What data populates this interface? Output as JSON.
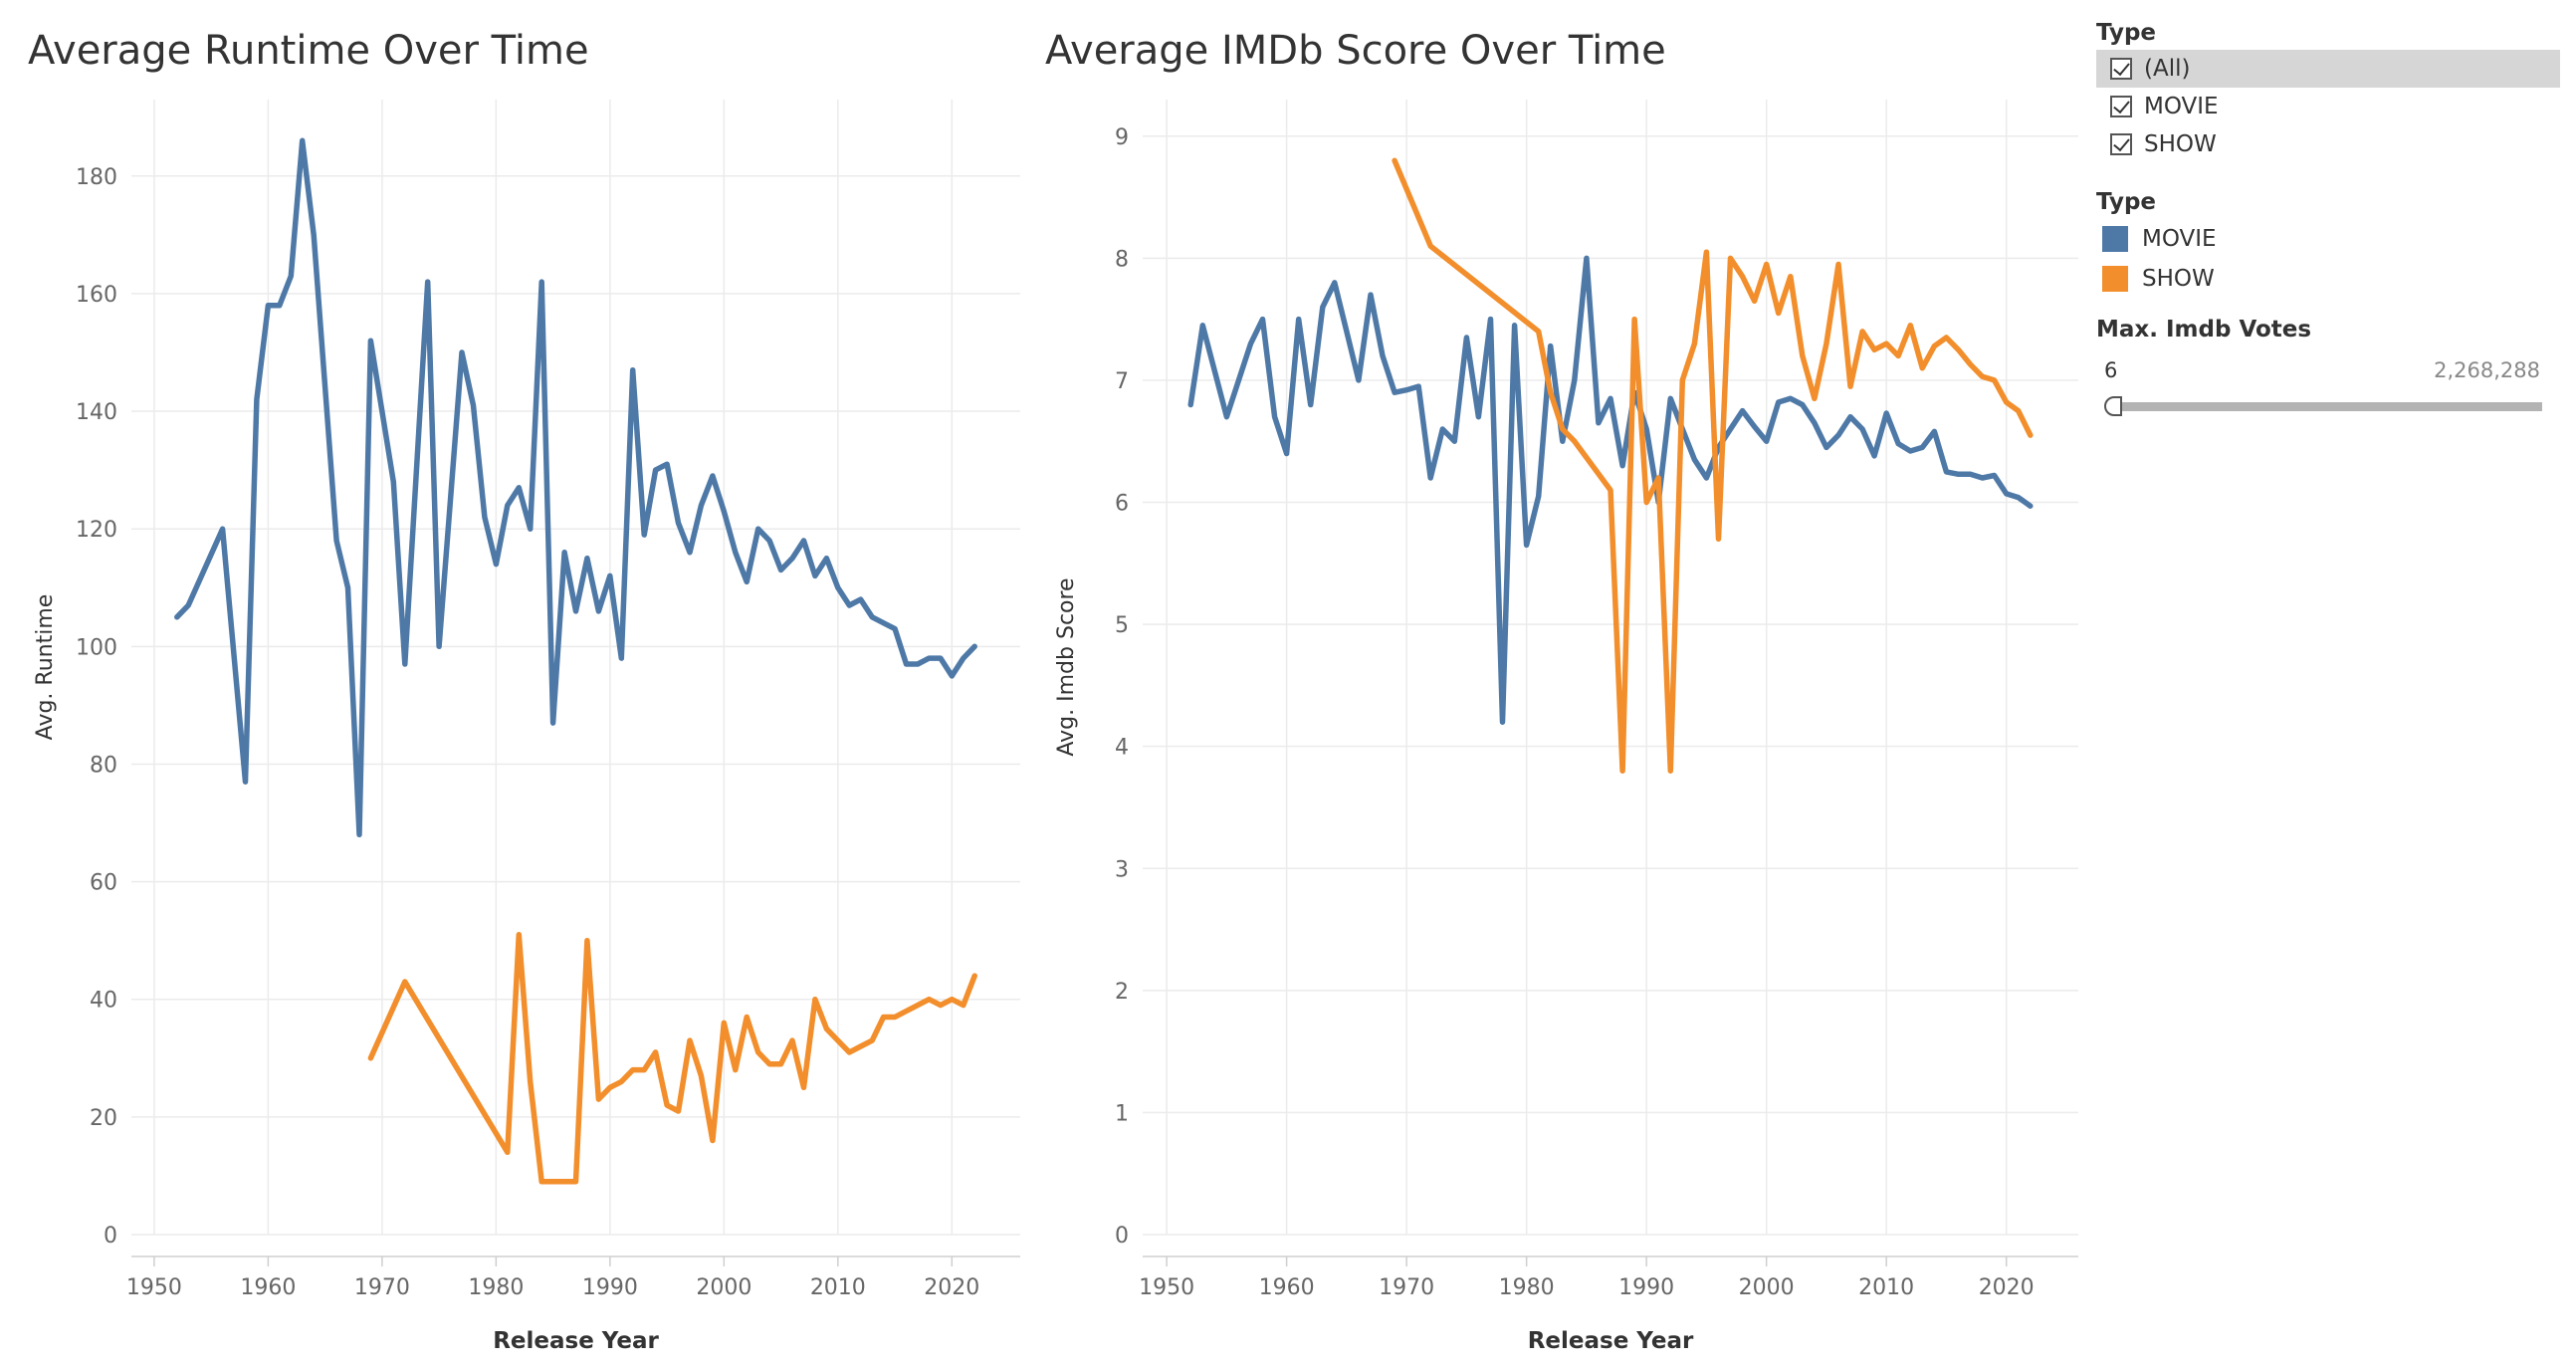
{
  "colors": {
    "movie": "#4e79a7",
    "show": "#f28e2b",
    "grid": "#ebebeb",
    "axis": "#cfcfcf"
  },
  "filter": {
    "title": "Type",
    "items": [
      {
        "label": "(All)",
        "checked": true,
        "selected": true
      },
      {
        "label": "MOVIE",
        "checked": true,
        "selected": false
      },
      {
        "label": "SHOW",
        "checked": true,
        "selected": false
      }
    ]
  },
  "legend": {
    "title": "Type",
    "items": [
      {
        "label": "MOVIE",
        "color": "#4e79a7"
      },
      {
        "label": "SHOW",
        "color": "#f28e2b"
      }
    ]
  },
  "slider": {
    "title": "Max. Imdb Votes",
    "min_label": "6",
    "max_label": "2,268,288",
    "value_fraction": 0.0
  },
  "chart_data": [
    {
      "type": "line",
      "title": "Average Runtime Over Time",
      "xlabel": "Release Year",
      "ylabel": "Avg. Runtime",
      "xlim": [
        1948,
        2026
      ],
      "ylim": [
        0,
        193
      ],
      "xticks": [
        1950,
        1960,
        1970,
        1980,
        1990,
        2000,
        2010,
        2020
      ],
      "yticks": [
        0,
        20,
        40,
        60,
        80,
        100,
        120,
        140,
        160,
        180
      ],
      "grid": true,
      "series": [
        {
          "name": "MOVIE",
          "color": "#4e79a7",
          "points": [
            [
              1952,
              105
            ],
            [
              1953,
              107
            ],
            [
              1956,
              120
            ],
            [
              1958,
              77
            ],
            [
              1959,
              142
            ],
            [
              1960,
              158
            ],
            [
              1961,
              158
            ],
            [
              1962,
              163
            ],
            [
              1963,
              186
            ],
            [
              1964,
              170
            ],
            [
              1966,
              118
            ],
            [
              1967,
              110
            ],
            [
              1968,
              68
            ],
            [
              1969,
              152
            ],
            [
              1971,
              128
            ],
            [
              1972,
              97
            ],
            [
              1974,
              162
            ],
            [
              1975,
              100
            ],
            [
              1977,
              150
            ],
            [
              1978,
              141
            ],
            [
              1979,
              122
            ],
            [
              1980,
              114
            ],
            [
              1981,
              124
            ],
            [
              1982,
              127
            ],
            [
              1983,
              120
            ],
            [
              1984,
              162
            ],
            [
              1985,
              87
            ],
            [
              1986,
              116
            ],
            [
              1987,
              106
            ],
            [
              1988,
              115
            ],
            [
              1989,
              106
            ],
            [
              1990,
              112
            ],
            [
              1991,
              98
            ],
            [
              1992,
              147
            ],
            [
              1993,
              119
            ],
            [
              1994,
              130
            ],
            [
              1995,
              131
            ],
            [
              1996,
              121
            ],
            [
              1997,
              116
            ],
            [
              1998,
              124
            ],
            [
              1999,
              129
            ],
            [
              2000,
              123
            ],
            [
              2001,
              116
            ],
            [
              2002,
              111
            ],
            [
              2003,
              120
            ],
            [
              2004,
              118
            ],
            [
              2005,
              113
            ],
            [
              2006,
              115
            ],
            [
              2007,
              118
            ],
            [
              2008,
              112
            ],
            [
              2009,
              115
            ],
            [
              2010,
              110
            ],
            [
              2011,
              107
            ],
            [
              2012,
              108
            ],
            [
              2013,
              105
            ],
            [
              2014,
              104
            ],
            [
              2015,
              103
            ],
            [
              2016,
              97
            ],
            [
              2017,
              97
            ],
            [
              2018,
              98
            ],
            [
              2019,
              98
            ],
            [
              2020,
              95
            ],
            [
              2021,
              98
            ],
            [
              2022,
              100
            ]
          ]
        },
        {
          "name": "SHOW",
          "color": "#f28e2b",
          "points": [
            [
              1969,
              30
            ],
            [
              1972,
              43
            ],
            [
              1981,
              14
            ],
            [
              1982,
              51
            ],
            [
              1983,
              26
            ],
            [
              1984,
              9
            ],
            [
              1987,
              9
            ],
            [
              1988,
              50
            ],
            [
              1989,
              23
            ],
            [
              1990,
              25
            ],
            [
              1991,
              26
            ],
            [
              1992,
              28
            ],
            [
              1993,
              28
            ],
            [
              1994,
              31
            ],
            [
              1995,
              22
            ],
            [
              1996,
              21
            ],
            [
              1997,
              33
            ],
            [
              1998,
              27
            ],
            [
              1999,
              16
            ],
            [
              2000,
              36
            ],
            [
              2001,
              28
            ],
            [
              2002,
              37
            ],
            [
              2003,
              31
            ],
            [
              2004,
              29
            ],
            [
              2005,
              29
            ],
            [
              2006,
              33
            ],
            [
              2007,
              25
            ],
            [
              2008,
              40
            ],
            [
              2009,
              35
            ],
            [
              2010,
              33
            ],
            [
              2011,
              31
            ],
            [
              2012,
              32
            ],
            [
              2013,
              33
            ],
            [
              2014,
              37
            ],
            [
              2015,
              37
            ],
            [
              2016,
              38
            ],
            [
              2017,
              39
            ],
            [
              2018,
              40
            ],
            [
              2019,
              39
            ],
            [
              2020,
              40
            ],
            [
              2021,
              39
            ],
            [
              2022,
              44
            ]
          ]
        }
      ]
    },
    {
      "type": "line",
      "title": "Average IMDb Score Over Time",
      "xlabel": "Release Year",
      "ylabel": "Avg. Imdb Score",
      "xlim": [
        1948,
        2026
      ],
      "ylim": [
        0,
        9.3
      ],
      "xticks": [
        1950,
        1960,
        1970,
        1980,
        1990,
        2000,
        2010,
        2020
      ],
      "yticks": [
        0,
        1,
        2,
        3,
        4,
        5,
        6,
        7,
        8,
        9
      ],
      "grid": true,
      "series": [
        {
          "name": "MOVIE",
          "color": "#4e79a7",
          "points": [
            [
              1952,
              6.8
            ],
            [
              1953,
              7.45
            ],
            [
              1955,
              6.7
            ],
            [
              1957,
              7.3
            ],
            [
              1958,
              7.5
            ],
            [
              1959,
              6.7
            ],
            [
              1960,
              6.4
            ],
            [
              1961,
              7.5
            ],
            [
              1962,
              6.8
            ],
            [
              1963,
              7.6
            ],
            [
              1964,
              7.8
            ],
            [
              1965,
              7.4
            ],
            [
              1966,
              7.0
            ],
            [
              1967,
              7.7
            ],
            [
              1968,
              7.2
            ],
            [
              1969,
              6.9
            ],
            [
              1970,
              6.92
            ],
            [
              1971,
              6.95
            ],
            [
              1972,
              6.2
            ],
            [
              1973,
              6.6
            ],
            [
              1974,
              6.5
            ],
            [
              1975,
              7.35
            ],
            [
              1976,
              6.7
            ],
            [
              1977,
              7.5
            ],
            [
              1978,
              4.2
            ],
            [
              1979,
              7.45
            ],
            [
              1980,
              5.65
            ],
            [
              1981,
              6.05
            ],
            [
              1982,
              7.28
            ],
            [
              1983,
              6.5
            ],
            [
              1984,
              7.0
            ],
            [
              1985,
              8.0
            ],
            [
              1986,
              6.65
            ],
            [
              1987,
              6.85
            ],
            [
              1988,
              6.3
            ],
            [
              1989,
              6.9
            ],
            [
              1990,
              6.6
            ],
            [
              1991,
              6.0
            ],
            [
              1992,
              6.85
            ],
            [
              1993,
              6.6
            ],
            [
              1994,
              6.35
            ],
            [
              1995,
              6.2
            ],
            [
              1996,
              6.45
            ],
            [
              1997,
              6.6
            ],
            [
              1998,
              6.75
            ],
            [
              1999,
              6.62
            ],
            [
              2000,
              6.5
            ],
            [
              2001,
              6.82
            ],
            [
              2002,
              6.85
            ],
            [
              2003,
              6.8
            ],
            [
              2004,
              6.65
            ],
            [
              2005,
              6.45
            ],
            [
              2006,
              6.55
            ],
            [
              2007,
              6.7
            ],
            [
              2008,
              6.6
            ],
            [
              2009,
              6.38
            ],
            [
              2010,
              6.73
            ],
            [
              2011,
              6.48
            ],
            [
              2012,
              6.42
            ],
            [
              2013,
              6.45
            ],
            [
              2014,
              6.58
            ],
            [
              2015,
              6.25
            ],
            [
              2016,
              6.23
            ],
            [
              2017,
              6.23
            ],
            [
              2018,
              6.2
            ],
            [
              2019,
              6.22
            ],
            [
              2020,
              6.07
            ],
            [
              2021,
              6.04
            ],
            [
              2022,
              5.97
            ]
          ]
        },
        {
          "name": "SHOW",
          "color": "#f28e2b",
          "points": [
            [
              1969,
              8.8
            ],
            [
              1972,
              8.1
            ],
            [
              1981,
              7.4
            ],
            [
              1982,
              6.9
            ],
            [
              1983,
              6.6
            ],
            [
              1984,
              6.5
            ],
            [
              1987,
              6.1
            ],
            [
              1988,
              3.8
            ],
            [
              1989,
              7.5
            ],
            [
              1990,
              6.0
            ],
            [
              1991,
              6.2
            ],
            [
              1992,
              3.8
            ],
            [
              1993,
              7.0
            ],
            [
              1994,
              7.3
            ],
            [
              1995,
              8.05
            ],
            [
              1996,
              5.7
            ],
            [
              1997,
              8.0
            ],
            [
              1998,
              7.85
            ],
            [
              1999,
              7.65
            ],
            [
              2000,
              7.95
            ],
            [
              2001,
              7.55
            ],
            [
              2002,
              7.85
            ],
            [
              2003,
              7.2
            ],
            [
              2004,
              6.85
            ],
            [
              2005,
              7.3
            ],
            [
              2006,
              7.95
            ],
            [
              2007,
              6.95
            ],
            [
              2008,
              7.4
            ],
            [
              2009,
              7.25
            ],
            [
              2010,
              7.3
            ],
            [
              2011,
              7.2
            ],
            [
              2012,
              7.45
            ],
            [
              2013,
              7.1
            ],
            [
              2014,
              7.28
            ],
            [
              2015,
              7.35
            ],
            [
              2016,
              7.25
            ],
            [
              2017,
              7.13
            ],
            [
              2018,
              7.03
            ],
            [
              2019,
              7.0
            ],
            [
              2020,
              6.82
            ],
            [
              2021,
              6.75
            ],
            [
              2022,
              6.55
            ]
          ]
        }
      ]
    }
  ]
}
